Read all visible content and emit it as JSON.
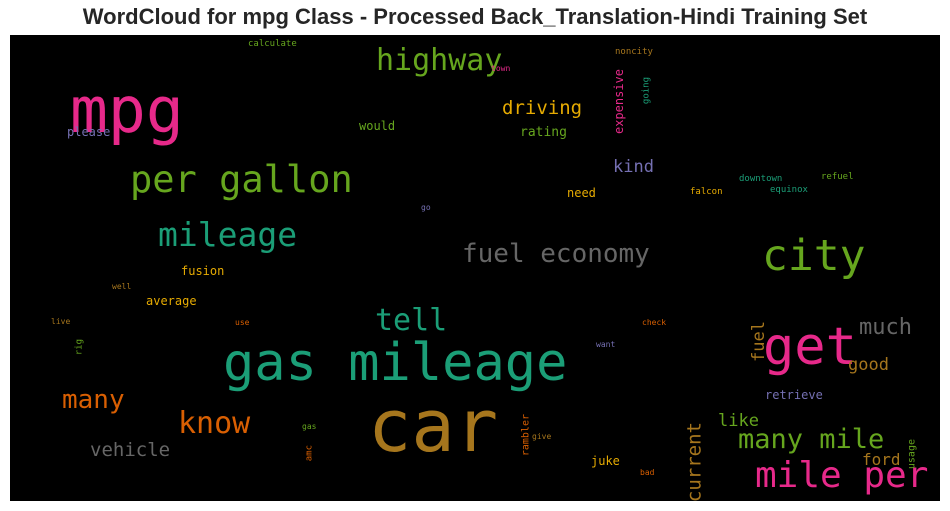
{
  "chart_data": {
    "type": "wordcloud",
    "title": "WordCloud for mpg Class - Processed Back_Translation-Hindi Training Set",
    "background": "#000000",
    "words": [
      {
        "text": "car",
        "weight": 1.0,
        "color": "#a6761d"
      },
      {
        "text": "mpg",
        "weight": 0.88,
        "color": "#e7298a"
      },
      {
        "text": "gas mileage",
        "weight": 0.72,
        "color": "#1b9e77"
      },
      {
        "text": "get",
        "weight": 0.72,
        "color": "#e7298a"
      },
      {
        "text": "city",
        "weight": 0.6,
        "color": "#66a61e"
      },
      {
        "text": "per gallon",
        "weight": 0.52,
        "color": "#66a61e"
      },
      {
        "text": "mile per",
        "weight": 0.5,
        "color": "#e7298a"
      },
      {
        "text": "mileage",
        "weight": 0.46,
        "color": "#1b9e77"
      },
      {
        "text": "highway",
        "weight": 0.42,
        "color": "#66a61e"
      },
      {
        "text": "tell",
        "weight": 0.42,
        "color": "#1b9e77"
      },
      {
        "text": "know",
        "weight": 0.42,
        "color": "#d95f02"
      },
      {
        "text": "many mile",
        "weight": 0.38,
        "color": "#66a61e"
      },
      {
        "text": "fuel economy",
        "weight": 0.36,
        "color": "#666666"
      },
      {
        "text": "many",
        "weight": 0.36,
        "color": "#d95f02"
      },
      {
        "text": "much",
        "weight": 0.3,
        "color": "#666666"
      },
      {
        "text": "vehicle",
        "weight": 0.26,
        "color": "#666666"
      },
      {
        "text": "driving",
        "weight": 0.26,
        "color": "#e6ab02"
      },
      {
        "text": "current",
        "weight": 0.26,
        "color": "#a6761d"
      },
      {
        "text": "fuel",
        "weight": 0.24,
        "color": "#a6761d"
      },
      {
        "text": "kind",
        "weight": 0.24,
        "color": "#7570b3"
      },
      {
        "text": "good",
        "weight": 0.24,
        "color": "#a6761d"
      },
      {
        "text": "like",
        "weight": 0.24,
        "color": "#66a61e"
      },
      {
        "text": "ford",
        "weight": 0.22,
        "color": "#a6761d"
      },
      {
        "text": "rating",
        "weight": 0.18,
        "color": "#66a61e"
      },
      {
        "text": "would",
        "weight": 0.17,
        "color": "#66a61e"
      },
      {
        "text": "need",
        "weight": 0.17,
        "color": "#e6ab02"
      },
      {
        "text": "expensive",
        "weight": 0.16,
        "color": "#e7298a"
      },
      {
        "text": "please",
        "weight": 0.16,
        "color": "#7570b3"
      },
      {
        "text": "fusion",
        "weight": 0.16,
        "color": "#e6ab02"
      },
      {
        "text": "average",
        "weight": 0.16,
        "color": "#e6ab02"
      },
      {
        "text": "retrieve",
        "weight": 0.16,
        "color": "#7570b3"
      },
      {
        "text": "juke",
        "weight": 0.16,
        "color": "#e6ab02"
      },
      {
        "text": "rambler",
        "weight": 0.14,
        "color": "#d95f02"
      },
      {
        "text": "usage",
        "weight": 0.14,
        "color": "#66a61e"
      },
      {
        "text": "going",
        "weight": 0.12,
        "color": "#1b9e77"
      },
      {
        "text": "noncity",
        "weight": 0.12,
        "color": "#a6761d"
      },
      {
        "text": "calculate",
        "weight": 0.12,
        "color": "#66a61e"
      },
      {
        "text": "falcon",
        "weight": 0.12,
        "color": "#e6ab02"
      },
      {
        "text": "downtown",
        "weight": 0.12,
        "color": "#1b9e77"
      },
      {
        "text": "equinox",
        "weight": 0.12,
        "color": "#1b9e77"
      },
      {
        "text": "refuel",
        "weight": 0.12,
        "color": "#66a61e"
      },
      {
        "text": "rig",
        "weight": 0.12,
        "color": "#66a61e"
      },
      {
        "text": "amc",
        "weight": 0.12,
        "color": "#d95f02"
      },
      {
        "text": "town",
        "weight": 0.11,
        "color": "#e7298a"
      },
      {
        "text": "go",
        "weight": 0.11,
        "color": "#7570b3"
      },
      {
        "text": "well",
        "weight": 0.11,
        "color": "#a6761d"
      },
      {
        "text": "live",
        "weight": 0.11,
        "color": "#a6761d"
      },
      {
        "text": "use",
        "weight": 0.11,
        "color": "#d95f02"
      },
      {
        "text": "check",
        "weight": 0.11,
        "color": "#d95f02"
      },
      {
        "text": "want",
        "weight": 0.11,
        "color": "#7570b3"
      },
      {
        "text": "gas",
        "weight": 0.11,
        "color": "#66a61e"
      },
      {
        "text": "give",
        "weight": 0.11,
        "color": "#a6761d"
      },
      {
        "text": "bad",
        "weight": 0.11,
        "color": "#d95f02"
      }
    ]
  }
}
